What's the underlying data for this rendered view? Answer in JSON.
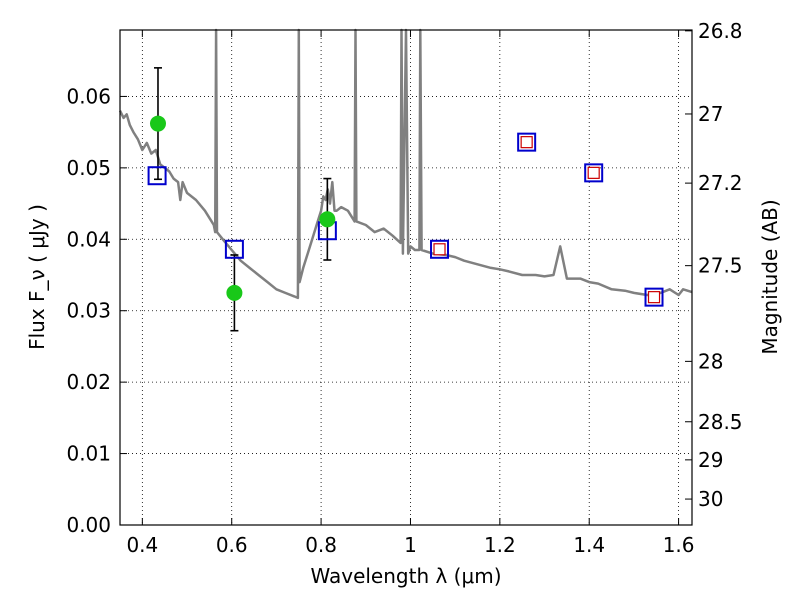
{
  "chart_data": {
    "type": "scatter",
    "xlabel": "Wavelength  λ (μm)",
    "ylabel": "Flux  F_ν  ( μJy )",
    "y2label": "Magnitude (AB)",
    "xlim": [
      0.35,
      1.63
    ],
    "ylim": [
      0.0,
      0.0693
    ],
    "grid": true,
    "x_ticks": [
      "0.4",
      "0.6",
      "0.8",
      "1",
      "1.2",
      "1.4",
      "1.6"
    ],
    "y_ticks": [
      "0.00",
      "0.01",
      "0.02",
      "0.03",
      "0.04",
      "0.05",
      "0.06"
    ],
    "y2_ticks": [
      {
        "label": "26.8",
        "mag": 26.8
      },
      {
        "label": "27",
        "mag": 27.0
      },
      {
        "label": "27.2",
        "mag": 27.2
      },
      {
        "label": "27.5",
        "mag": 27.5
      },
      {
        "label": "28",
        "mag": 28.0
      },
      {
        "label": "28.5",
        "mag": 28.5
      },
      {
        "label": "29",
        "mag": 29.0
      },
      {
        "label": "30",
        "mag": 30.0
      }
    ],
    "sed_model": [
      [
        0.35,
        0.058
      ],
      [
        0.358,
        0.057
      ],
      [
        0.365,
        0.0575
      ],
      [
        0.372,
        0.056
      ],
      [
        0.38,
        0.055
      ],
      [
        0.39,
        0.054
      ],
      [
        0.4,
        0.0525
      ],
      [
        0.41,
        0.0535
      ],
      [
        0.42,
        0.052
      ],
      [
        0.43,
        0.0525
      ],
      [
        0.44,
        0.0505
      ],
      [
        0.45,
        0.05
      ],
      [
        0.46,
        0.0495
      ],
      [
        0.47,
        0.0485
      ],
      [
        0.48,
        0.048
      ],
      [
        0.485,
        0.0455
      ],
      [
        0.49,
        0.048
      ],
      [
        0.5,
        0.0465
      ],
      [
        0.52,
        0.0455
      ],
      [
        0.54,
        0.044
      ],
      [
        0.555,
        0.0425
      ],
      [
        0.56,
        0.042
      ],
      [
        0.563,
        0.041
      ],
      [
        0.565,
        0.0695
      ],
      [
        0.567,
        0.041
      ],
      [
        0.58,
        0.04
      ],
      [
        0.6,
        0.0385
      ],
      [
        0.62,
        0.037
      ],
      [
        0.64,
        0.036
      ],
      [
        0.66,
        0.035
      ],
      [
        0.68,
        0.034
      ],
      [
        0.7,
        0.033
      ],
      [
        0.72,
        0.0325
      ],
      [
        0.74,
        0.032
      ],
      [
        0.748,
        0.0318
      ],
      [
        0.75,
        0.0695
      ],
      [
        0.752,
        0.034
      ],
      [
        0.76,
        0.036
      ],
      [
        0.77,
        0.038
      ],
      [
        0.78,
        0.04
      ],
      [
        0.79,
        0.042
      ],
      [
        0.8,
        0.044
      ],
      [
        0.805,
        0.046
      ],
      [
        0.81,
        0.0455
      ],
      [
        0.815,
        0.047
      ],
      [
        0.82,
        0.045
      ],
      [
        0.825,
        0.048
      ],
      [
        0.83,
        0.044
      ],
      [
        0.835,
        0.044
      ],
      [
        0.845,
        0.0445
      ],
      [
        0.86,
        0.044
      ],
      [
        0.875,
        0.0425
      ],
      [
        0.877,
        0.0695
      ],
      [
        0.879,
        0.0425
      ],
      [
        0.9,
        0.042
      ],
      [
        0.92,
        0.041
      ],
      [
        0.94,
        0.0415
      ],
      [
        0.96,
        0.0405
      ],
      [
        0.978,
        0.0395
      ],
      [
        0.98,
        0.0695
      ],
      [
        0.983,
        0.038
      ],
      [
        0.99,
        0.0695
      ],
      [
        0.995,
        0.038
      ],
      [
        1.0,
        0.039
      ],
      [
        1.01,
        0.0385
      ],
      [
        1.02,
        0.0385
      ],
      [
        1.022,
        0.0695
      ],
      [
        1.025,
        0.0385
      ],
      [
        1.05,
        0.038
      ],
      [
        1.08,
        0.0378
      ],
      [
        1.1,
        0.0375
      ],
      [
        1.12,
        0.037
      ],
      [
        1.15,
        0.0365
      ],
      [
        1.18,
        0.036
      ],
      [
        1.2,
        0.0358
      ],
      [
        1.22,
        0.0355
      ],
      [
        1.25,
        0.035
      ],
      [
        1.28,
        0.035
      ],
      [
        1.3,
        0.0348
      ],
      [
        1.32,
        0.035
      ],
      [
        1.335,
        0.039
      ],
      [
        1.35,
        0.0345
      ],
      [
        1.38,
        0.0345
      ],
      [
        1.4,
        0.034
      ],
      [
        1.42,
        0.0338
      ],
      [
        1.45,
        0.033
      ],
      [
        1.48,
        0.0328
      ],
      [
        1.5,
        0.0325
      ],
      [
        1.53,
        0.0322
      ],
      [
        1.56,
        0.0325
      ],
      [
        1.58,
        0.033
      ],
      [
        1.6,
        0.0322
      ],
      [
        1.61,
        0.033
      ],
      [
        1.63,
        0.0326
      ]
    ],
    "sed_line_color": "#808080",
    "observed": [
      {
        "x": 0.435,
        "y": 0.0562,
        "err": 0.0078
      },
      {
        "x": 0.606,
        "y": 0.0325,
        "err": 0.0053
      },
      {
        "x": 0.814,
        "y": 0.0428,
        "err": 0.0057
      }
    ],
    "observed_color": "#19c819",
    "model_bands": [
      {
        "x": 0.433,
        "y": 0.0489
      },
      {
        "x": 0.606,
        "y": 0.0386
      },
      {
        "x": 0.814,
        "y": 0.0412
      },
      {
        "x": 1.065,
        "y": 0.0386
      },
      {
        "x": 1.26,
        "y": 0.0536
      },
      {
        "x": 1.41,
        "y": 0.0493
      },
      {
        "x": 1.545,
        "y": 0.0319
      }
    ],
    "model_band_color": "#0000cc",
    "upper_points": [
      {
        "x": 1.065,
        "y": 0.0386
      },
      {
        "x": 1.26,
        "y": 0.0536
      },
      {
        "x": 1.41,
        "y": 0.0493
      },
      {
        "x": 1.545,
        "y": 0.0319
      }
    ],
    "upper_point_color": "#cc0000"
  }
}
